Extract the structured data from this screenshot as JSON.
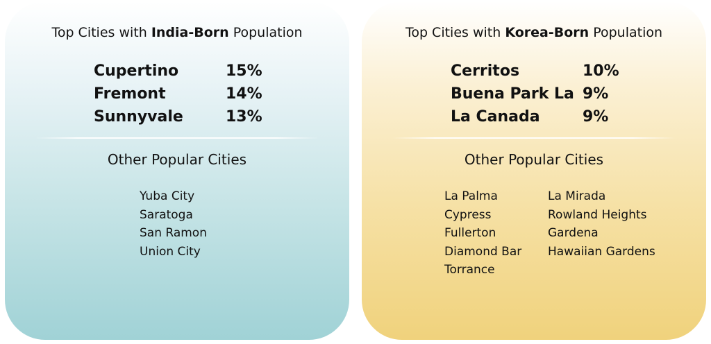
{
  "india": {
    "heading_prefix": "Top Cities with ",
    "heading_bold": "India-Born",
    "heading_suffix": " Population",
    "top_cities": [
      {
        "city": "Cupertino",
        "pct": "15%"
      },
      {
        "city": "Fremont",
        "pct": "14%"
      },
      {
        "city": "Sunnyvale",
        "pct": "13%"
      }
    ],
    "other_heading": "Other Popular Cities",
    "other_cities_col1": [
      "Yuba City",
      "Saratoga",
      "San Ramon",
      "Union City"
    ]
  },
  "korea": {
    "heading_prefix": "Top Cities with ",
    "heading_bold": "Korea-Born",
    "heading_suffix": " Population",
    "top_cities": [
      {
        "city": "Cerritos",
        "pct": "10%"
      },
      {
        "city": "Buena Park La",
        "pct": "9%"
      },
      {
        "city": "La Canada",
        "pct": "9%"
      }
    ],
    "other_heading": "Other Popular Cities",
    "other_cities_col1": [
      "La Palma",
      "Cypress",
      "Fullerton",
      "Diamond Bar",
      "Torrance"
    ],
    "other_cities_col2": [
      "La Mirada",
      "Rowland Heights",
      "Gardena",
      "Hawaiian Gardens"
    ]
  }
}
